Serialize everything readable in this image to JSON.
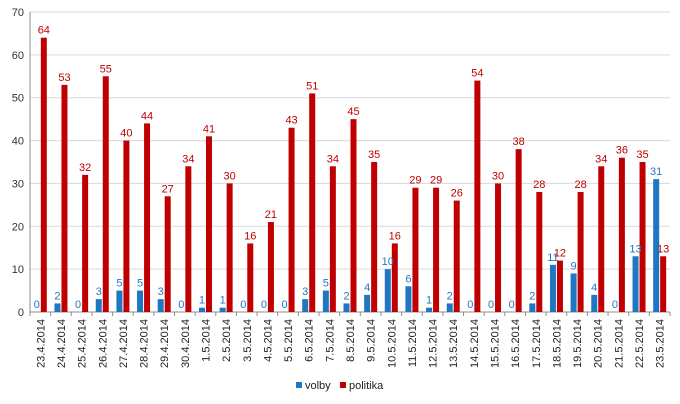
{
  "chart_data": {
    "type": "bar",
    "title": "",
    "xlabel": "",
    "ylabel": "",
    "ylim": [
      0,
      70
    ],
    "yticks": [
      0,
      10,
      20,
      30,
      40,
      50,
      60,
      70
    ],
    "grid": true,
    "legend_position": "bottom",
    "categories": [
      "23.4.2014",
      "24.4.2014",
      "25.4.2014",
      "26.4.2014",
      "27.4.2014",
      "28.4.2014",
      "29.4.2014",
      "30.4.2014",
      "1.5.2014",
      "2.5.2014",
      "3.5.2014",
      "4.5.2014",
      "5.5.2014",
      "6.5.2014",
      "7.5.2014",
      "8.5.2014",
      "9.5.2014",
      "10.5.2014",
      "11.5.2014",
      "12.5.2014",
      "13.5.2014",
      "14.5.2014",
      "15.5.2014",
      "16.5.2014",
      "17.5.2014",
      "18.5.2014",
      "19.5.2014",
      "20.5.2014",
      "21.5.2014",
      "22.5.2014",
      "23.5.2014"
    ],
    "series": [
      {
        "name": "volby",
        "color": "#1f77c4",
        "values": [
          0,
          2,
          0,
          3,
          5,
          5,
          3,
          0,
          1,
          1,
          0,
          0,
          0,
          3,
          5,
          2,
          4,
          10,
          6,
          1,
          2,
          0,
          0,
          0,
          2,
          11,
          9,
          4,
          0,
          13,
          31
        ]
      },
      {
        "name": "politika",
        "color": "#c00000",
        "values": [
          64,
          53,
          32,
          55,
          40,
          44,
          27,
          34,
          41,
          30,
          16,
          21,
          43,
          51,
          34,
          45,
          35,
          16,
          29,
          29,
          26,
          54,
          30,
          38,
          28,
          12,
          28,
          34,
          36,
          35,
          13
        ]
      }
    ]
  }
}
